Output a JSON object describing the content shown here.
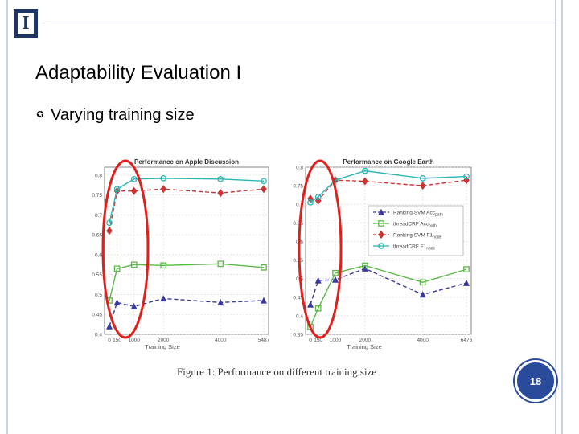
{
  "slide": {
    "title": "Adaptability Evaluation I",
    "bullet_symbol": "✪",
    "bullet_text": "Varying training size",
    "page_number": "18",
    "logo_letter": "I",
    "caption": "Figure 1: Performance on different training size"
  },
  "colors": {
    "logo": "#1f3566",
    "badge": "#2a4b9b",
    "highlight": "#e0201c",
    "series": [
      "#3a3a9c",
      "#5cb84a",
      "#cc3333",
      "#2bb5b5"
    ]
  },
  "chart_data": [
    {
      "type": "line",
      "title": "Performance on Apple Discussion",
      "xlabel": "Training Size",
      "x": [
        0,
        150,
        1000,
        2000,
        4000,
        5487
      ],
      "xticklabels": [
        "0",
        "150",
        "1000",
        "2000",
        "4000",
        "5487"
      ],
      "ylim": [
        0.4,
        0.82
      ],
      "yticks": [
        0.4,
        0.45,
        0.5,
        0.55,
        0.6,
        0.65,
        0.7,
        0.75,
        0.8
      ],
      "yticklabels": [
        "0.4",
        "0.45",
        "0.5",
        "0.55",
        "0.6",
        "0.65",
        "0.7",
        "0.75",
        "0.8"
      ],
      "series": [
        {
          "values": [
            0.42,
            0.48,
            0.47,
            0.49,
            0.48,
            0.485
          ],
          "style": "dashed",
          "marker": "triangle"
        },
        {
          "values": [
            0.485,
            0.565,
            0.575,
            0.573,
            0.577,
            0.568
          ],
          "style": "solid",
          "marker": "square"
        },
        {
          "values": [
            0.66,
            0.76,
            0.76,
            0.765,
            0.755,
            0.765
          ],
          "style": "dashed",
          "marker": "diamond"
        },
        {
          "values": [
            0.68,
            0.765,
            0.79,
            0.792,
            0.79,
            0.785
          ],
          "style": "solid",
          "marker": "circle"
        }
      ]
    },
    {
      "type": "line",
      "title": "Performance on Google Earth",
      "xlabel": "Training Size",
      "x": [
        0,
        150,
        1000,
        2000,
        4000,
        6476
      ],
      "xticklabels": [
        "0",
        "150",
        "1000",
        "2000",
        "4000",
        "6476"
      ],
      "ylim": [
        0.35,
        0.8
      ],
      "yticks": [
        0.35,
        0.4,
        0.45,
        0.5,
        0.55,
        0.6,
        0.65,
        0.7,
        0.75,
        0.8
      ],
      "yticklabels": [
        "0.35",
        "0.4",
        "0.45",
        "0.5",
        "0.55",
        "0.6",
        "0.65",
        "0.7",
        "0.75",
        "0.8"
      ],
      "legend_position": "right",
      "legend": [
        {
          "text": "Ranking SVM Acc",
          "sub": "path"
        },
        {
          "text": "threadCRF Acc",
          "sub": "path"
        },
        {
          "text": "Ranking SVM F1",
          "sub": "node"
        },
        {
          "text": "threadCRF F1",
          "sub": "node"
        }
      ],
      "series": [
        {
          "values": [
            0.43,
            0.495,
            0.497,
            0.527,
            0.457,
            0.488
          ],
          "style": "dashed",
          "marker": "triangle"
        },
        {
          "values": [
            0.37,
            0.42,
            0.515,
            0.535,
            0.49,
            0.525
          ],
          "style": "solid",
          "marker": "square"
        },
        {
          "values": [
            0.715,
            0.71,
            0.765,
            0.762,
            0.75,
            0.765
          ],
          "style": "dashed",
          "marker": "diamond"
        },
        {
          "values": [
            0.705,
            0.72,
            0.765,
            0.79,
            0.77,
            0.775
          ],
          "style": "solid",
          "marker": "circle"
        }
      ]
    }
  ]
}
